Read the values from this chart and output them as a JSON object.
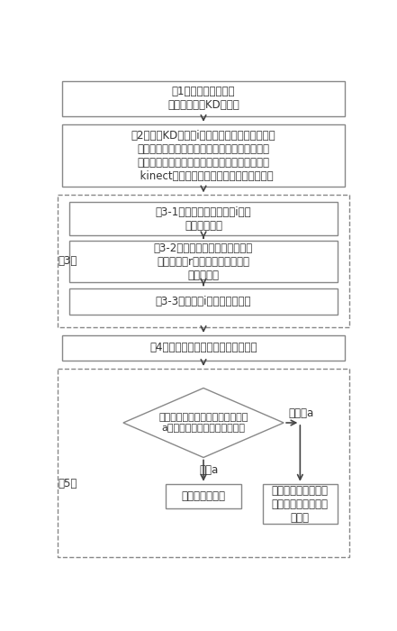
{
  "bg_color": "#ffffff",
  "box_edge_color": "#888888",
  "dashed_edge_color": "#888888",
  "arrow_color": "#444444",
  "text_color": "#333333",
  "font_size": 9,
  "small_font_size": 8.5,
  "step1_text": "（1）读取点云数据，\n对点云数据按KD树划分",
  "step2_text": "（2）利用KD树查找i个邻域点，采用主元成分分\n析对上述查找的邻域点拟合出一个平面，以这个\n拟合平面的法向量作为点云中各点的法向量，以\n  kinect摄像机位置为视点，法向量朝向视点",
  "step31_text": "（3-1）设点云数据中的第i个邻\n域点的法向量",
  "step32_text": "（3-2）计算点云数据的每个数据\n点在半径为r内各个邻域点的法向\n量加权均值",
  "step33_text": "（3-3）计算第i个邻域点的权重",
  "step3_label": "（3）",
  "step4_text": "（4）设置数据点的法向量评估置信度",
  "diamond_text": "设定评估点的法向量置信度的阈值\na，判断数据点的法向量置信度",
  "step5_label": "（5）",
  "yes_label": "大于a",
  "no_label": "不大于a",
  "left_box_text": "点的法向量可信",
  "right_box_text": "该邻域点法向量的加\n权均值替换为该点的\n法向量"
}
